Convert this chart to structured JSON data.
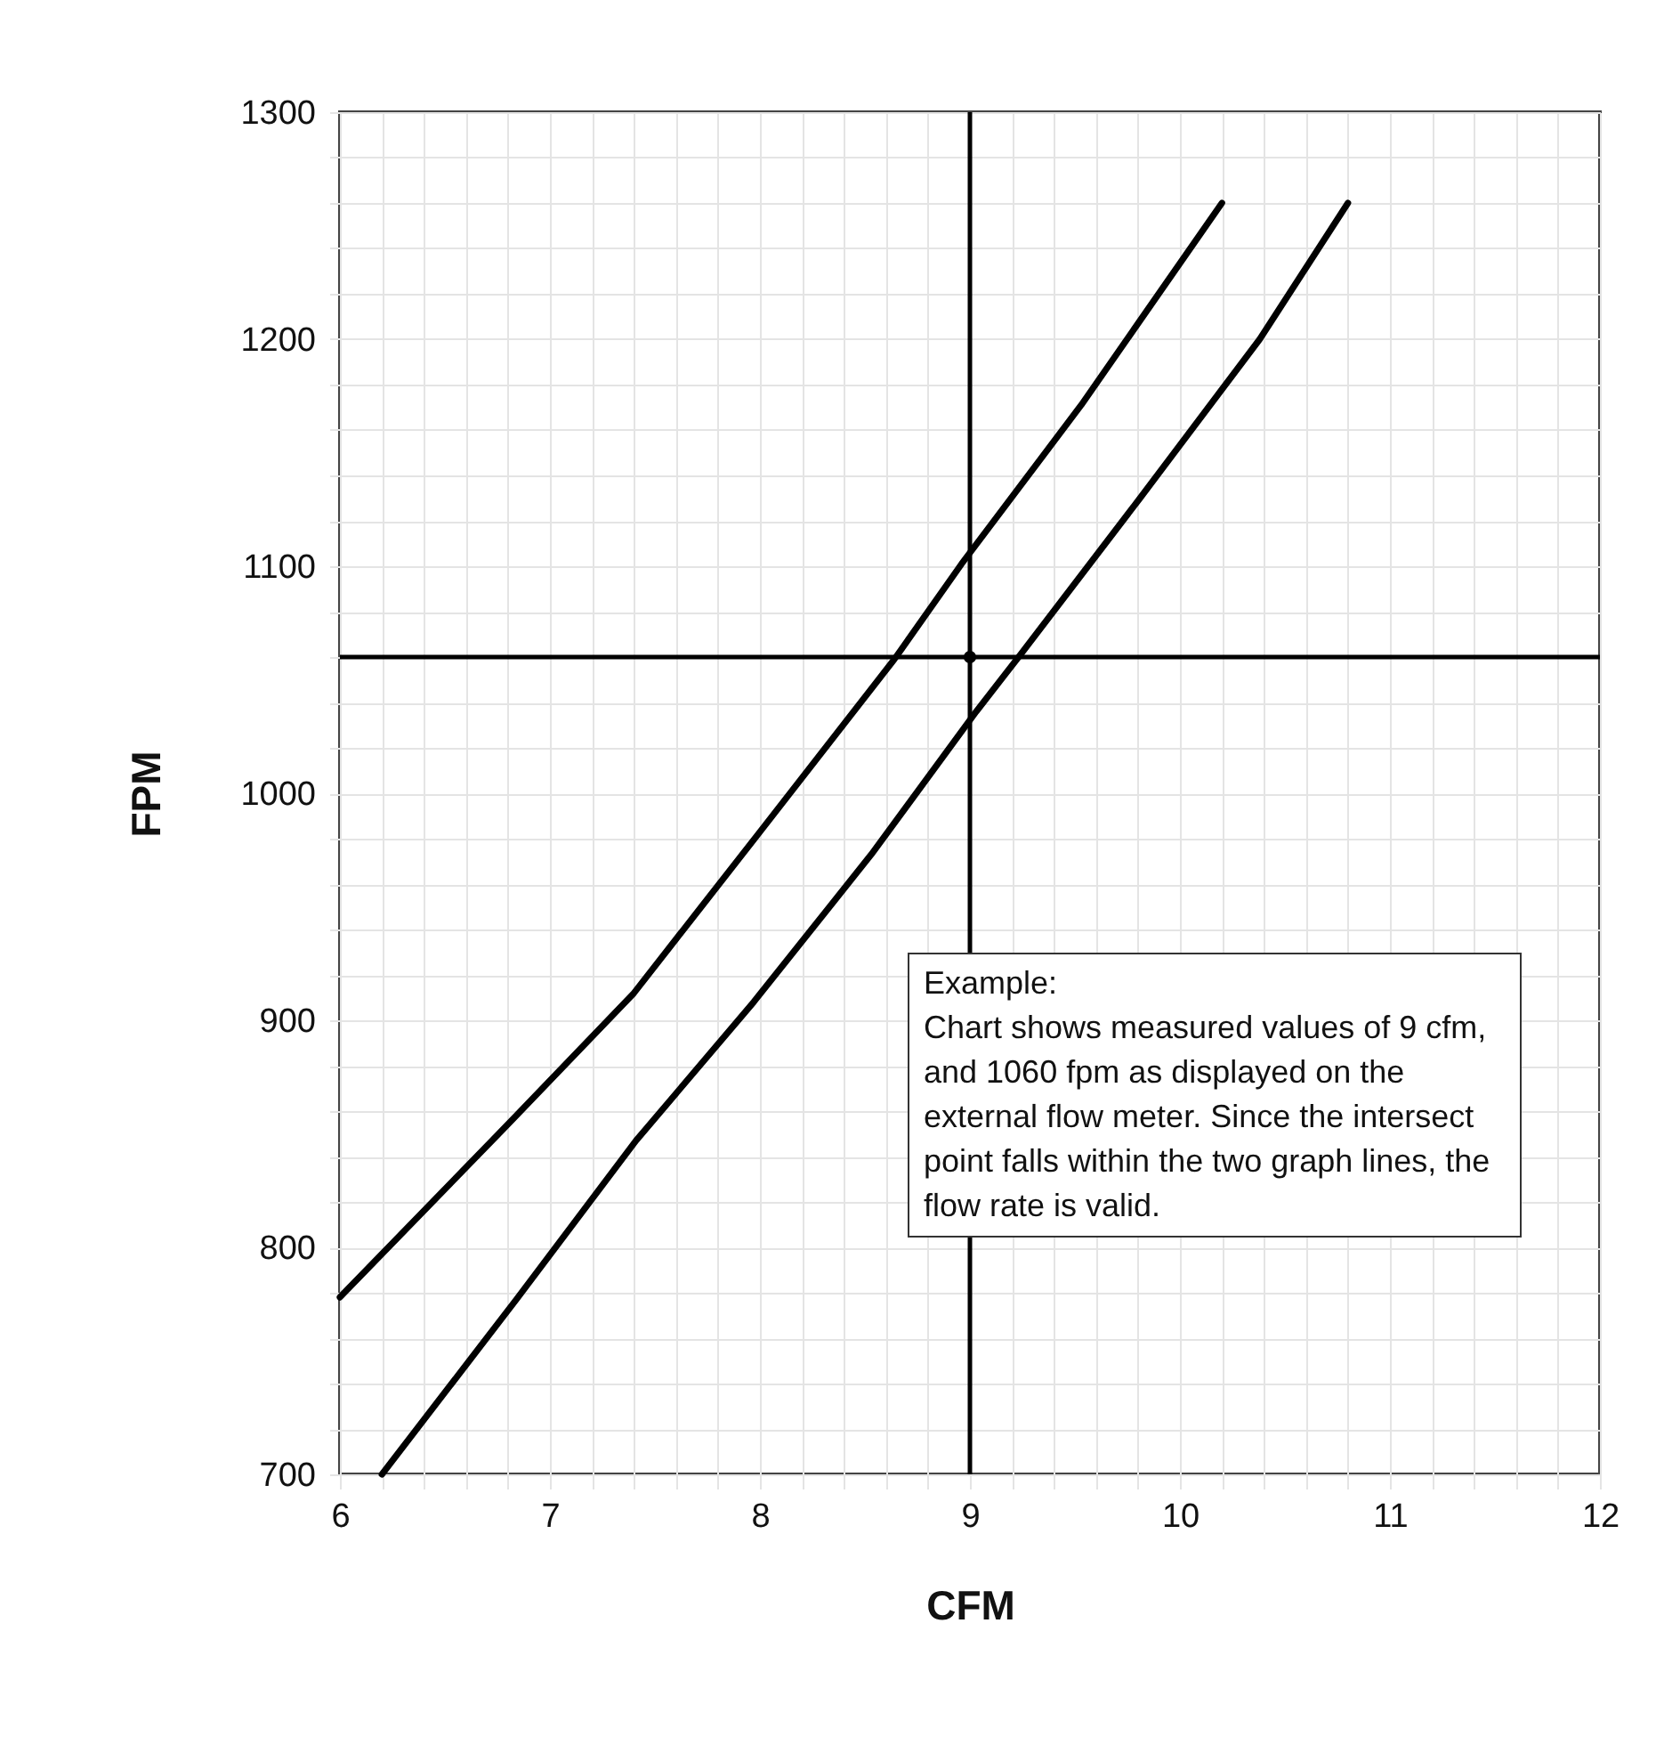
{
  "chart_data": {
    "type": "line",
    "xlabel": "CFM",
    "ylabel": "FPM",
    "xlim": [
      6,
      12
    ],
    "ylim": [
      700,
      1300
    ],
    "xticks": [
      6,
      7,
      8,
      9,
      10,
      11,
      12
    ],
    "yticks": [
      700,
      800,
      900,
      1000,
      1100,
      1200,
      1300
    ],
    "grid": true,
    "series": [
      {
        "color": "#000000",
        "x": [
          6,
          6.84,
          7.4,
          8,
          8.64,
          8.96,
          9.53,
          10.2
        ],
        "values": [
          778,
          858,
          912,
          983,
          1059,
          1101,
          1171,
          1260
        ]
      },
      {
        "color": "#000000",
        "x": [
          6.2,
          6.84,
          7.41,
          7.97,
          8.53,
          9.03,
          9.24,
          9.81,
          10.38,
          10.8
        ],
        "values": [
          700,
          777,
          847,
          908,
          973,
          1036,
          1061,
          1130,
          1200,
          1260
        ]
      },
      {
        "type": "scatter",
        "marker": "circle",
        "color": "#000000",
        "x": [
          9
        ],
        "values": [
          1060
        ]
      }
    ],
    "ref_lines": [
      {
        "axis": "x",
        "value": 9,
        "color": "#000000"
      },
      {
        "axis": "y",
        "value": 1060,
        "color": "#000000"
      }
    ],
    "annotations": [
      "Example:\nChart shows measured values of 9 cfm, and 1060 fpm as displayed on the external flow meter. Since the intersect point falls within the two graph lines, the flow rate is valid."
    ]
  }
}
